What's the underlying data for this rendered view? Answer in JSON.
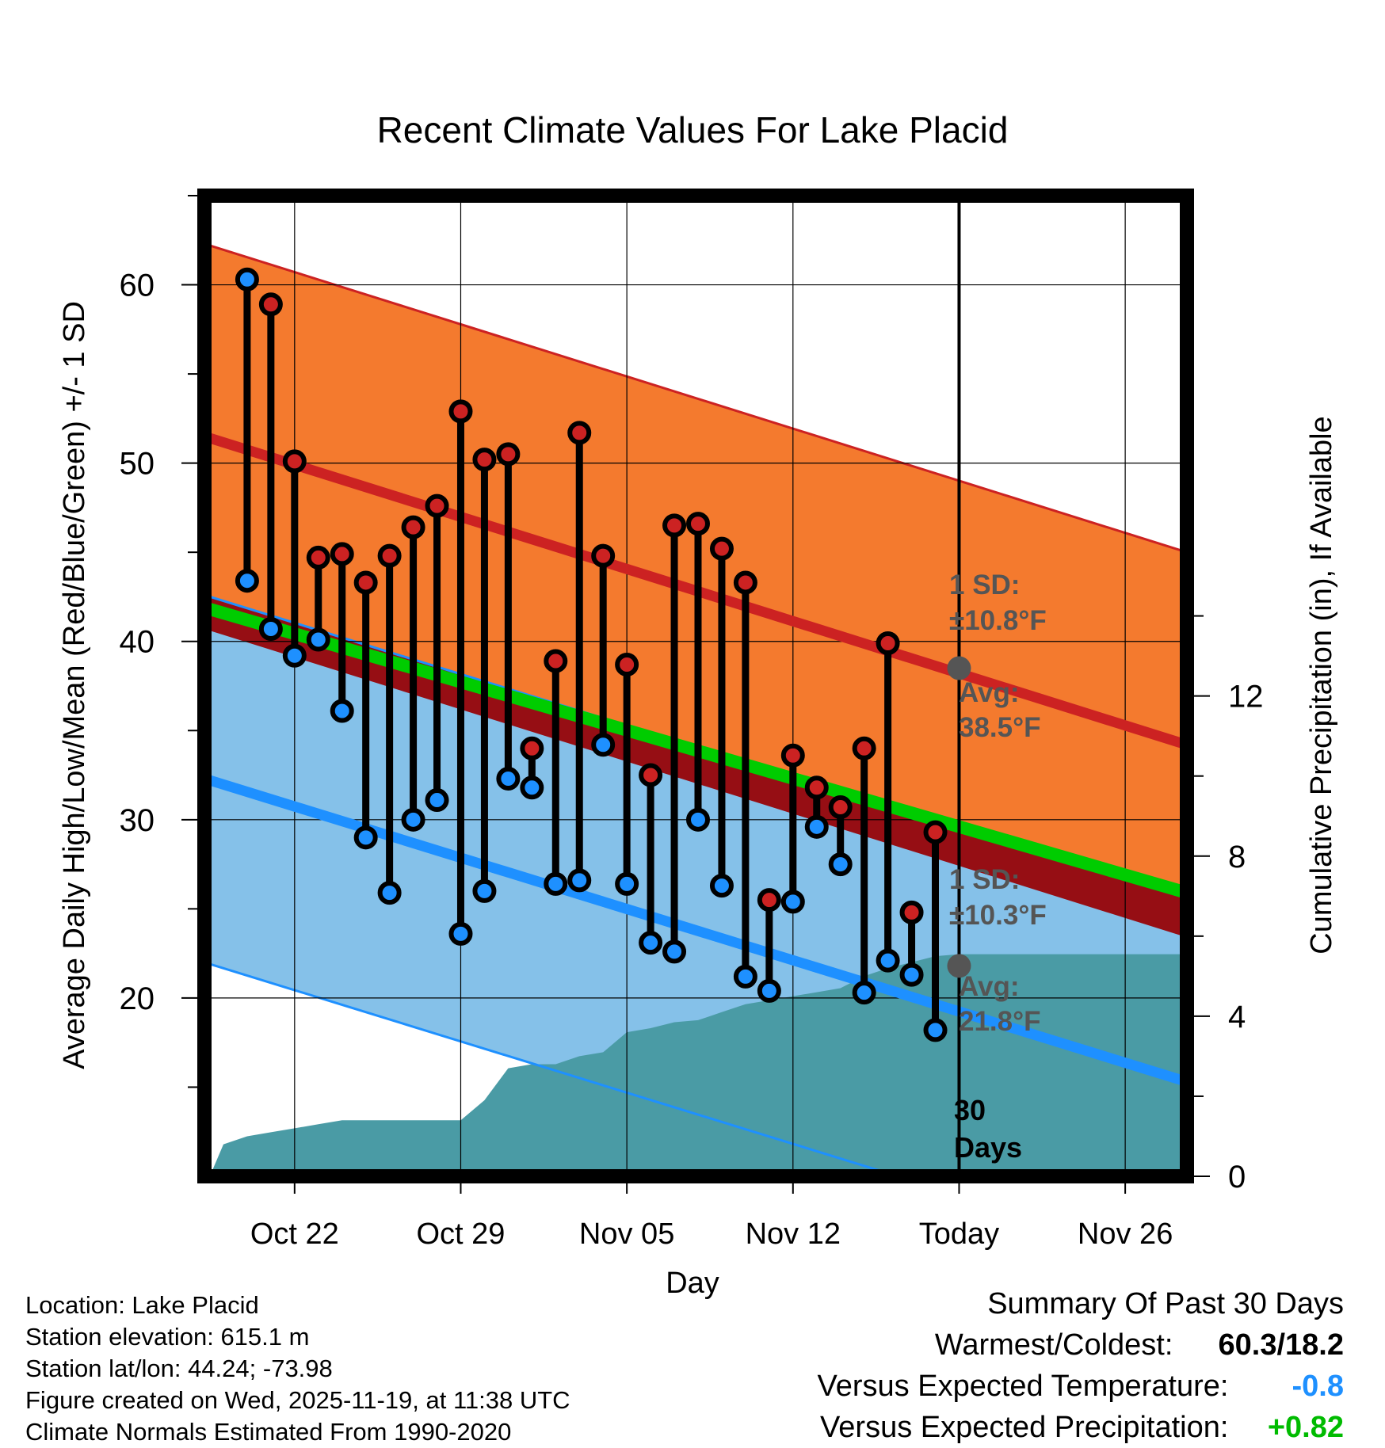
{
  "chart_data": {
    "type": "line",
    "title": "Recent Climate Values For Lake Placid",
    "xlabel": "Day",
    "ylabel_left": "Average Daily High/Low/Mean (Red/Blue/Green) +/- 1 SD",
    "ylabel_right": "Cumulative Precipitation (in), If Available",
    "x_range_days": [
      -31.8,
      9.6
    ],
    "ylim_left": [
      10,
      65
    ],
    "ylim_right": [
      0,
      24.5
    ],
    "x_ticks": [
      {
        "day": -28,
        "label": "Oct 22"
      },
      {
        "day": -21,
        "label": "Oct 29"
      },
      {
        "day": -14,
        "label": "Nov 05"
      },
      {
        "day": -7,
        "label": "Nov 12"
      },
      {
        "day": 0,
        "label": "Today"
      },
      {
        "day": 7,
        "label": "Nov 26"
      }
    ],
    "y_ticks_left": [
      20,
      30,
      40,
      50,
      60
    ],
    "y_ticks_right": [
      0,
      4,
      8,
      12
    ],
    "normal_high": {
      "start": 51.5,
      "end": 34.2,
      "sd": 10.8
    },
    "normal_low": {
      "start": 32.3,
      "end": 15.3,
      "sd": 10.3
    },
    "normal_mean": {
      "start": 41.9,
      "end": 25.9
    },
    "observed": {
      "days": [
        -30,
        -29,
        -28,
        -27,
        -26,
        -25,
        -24,
        -23,
        -22,
        -21,
        -20,
        -19,
        -18,
        -17,
        -16,
        -15,
        -14,
        -13,
        -12,
        -11,
        -10,
        -9,
        -8,
        -7,
        -6,
        -5,
        -4,
        -3,
        -2,
        -1
      ],
      "high": [
        60.3,
        58.9,
        50.1,
        44.7,
        44.9,
        43.3,
        44.8,
        46.4,
        47.6,
        52.9,
        50.2,
        50.5,
        34.0,
        38.9,
        51.7,
        44.8,
        38.7,
        32.5,
        46.5,
        46.6,
        45.2,
        43.3,
        25.5,
        33.6,
        31.8,
        30.7,
        34.0,
        39.9,
        24.8,
        29.3
      ],
      "low": [
        43.4,
        40.7,
        39.2,
        40.1,
        36.1,
        29.0,
        25.9,
        30.0,
        31.1,
        23.6,
        26.0,
        32.3,
        31.8,
        26.4,
        26.6,
        34.2,
        26.4,
        23.1,
        22.6,
        30.0,
        26.3,
        21.2,
        20.4,
        25.4,
        29.6,
        27.5,
        20.3,
        22.1,
        21.3,
        18.2
      ],
      "high_color": [
        "#1e90ff",
        "#cc2222",
        "#cc2222",
        "#cc2222",
        "#cc2222",
        "#cc2222",
        "#cc2222",
        "#cc2222",
        "#cc2222",
        "#cc2222",
        "#cc2222",
        "#cc2222",
        "#cc2222",
        "#cc2222",
        "#cc2222",
        "#cc2222",
        "#cc2222",
        "#cc2222",
        "#cc2222",
        "#cc2222",
        "#cc2222",
        "#cc2222",
        "#cc2222",
        "#cc2222",
        "#cc2222",
        "#cc2222",
        "#cc2222",
        "#cc2222",
        "#cc2222",
        "#cc2222"
      ]
    },
    "precip_cumulative": {
      "days": [
        -31.5,
        -31,
        -30,
        -29,
        -28,
        -27,
        -26,
        -25,
        -24,
        -23,
        -22,
        -21,
        -20,
        -19,
        -18,
        -17,
        -16,
        -15,
        -14,
        -13,
        -12,
        -11,
        -10,
        -9,
        -8,
        -7,
        -6,
        -5,
        -4,
        -3,
        -2,
        -1,
        0,
        9.6
      ],
      "values": [
        0.1,
        0.8,
        1.0,
        1.1,
        1.2,
        1.3,
        1.4,
        1.4,
        1.4,
        1.4,
        1.4,
        1.4,
        1.9,
        2.7,
        2.8,
        2.8,
        3.0,
        3.1,
        3.6,
        3.7,
        3.85,
        3.9,
        4.1,
        4.3,
        4.4,
        4.5,
        4.6,
        4.7,
        5.0,
        5.2,
        5.35,
        5.5,
        5.55,
        5.55
      ]
    },
    "annotations": {
      "high_sd": {
        "label": "1 SD:",
        "value": "±10.8°F"
      },
      "high_avg": {
        "label": "Avg:",
        "value": "38.5°F",
        "y": 38.5
      },
      "low_sd": {
        "label": "1 SD:",
        "value": "±10.3°F"
      },
      "low_avg": {
        "label": "Avg:",
        "value": "21.8°F",
        "y": 21.8
      },
      "days_label_1": "30",
      "days_label_2": "Days"
    },
    "colors": {
      "high_band": "#f47a2e",
      "high_line": "#cc2222",
      "low_band": "#85c1e9",
      "low_line": "#1e90ff",
      "mean_line": "#00cc00",
      "dark_red": "#960e14",
      "precip": "#4a9ba5",
      "annotation": "#555555"
    }
  },
  "footer": {
    "location": "Location: Lake Placid",
    "elevation": "Station elevation: 615.1 m",
    "latlon": "Station lat/lon: 44.24; -73.98",
    "created": "Figure created on Wed, 2025-11-19, at 11:38 UTC",
    "normals": "Climate Normals Estimated From 1990-2020"
  },
  "summary": {
    "title": "Summary Of Past 30 Days",
    "warm_cold_label": "Warmest/Coldest:",
    "warm_cold_value": "60.3/18.2",
    "temp_label": "Versus Expected Temperature:",
    "temp_value": "-0.8",
    "temp_color": "#1e90ff",
    "precip_label": "Versus Expected Precipitation:",
    "precip_value": "+0.82",
    "precip_color": "#00bb00"
  }
}
